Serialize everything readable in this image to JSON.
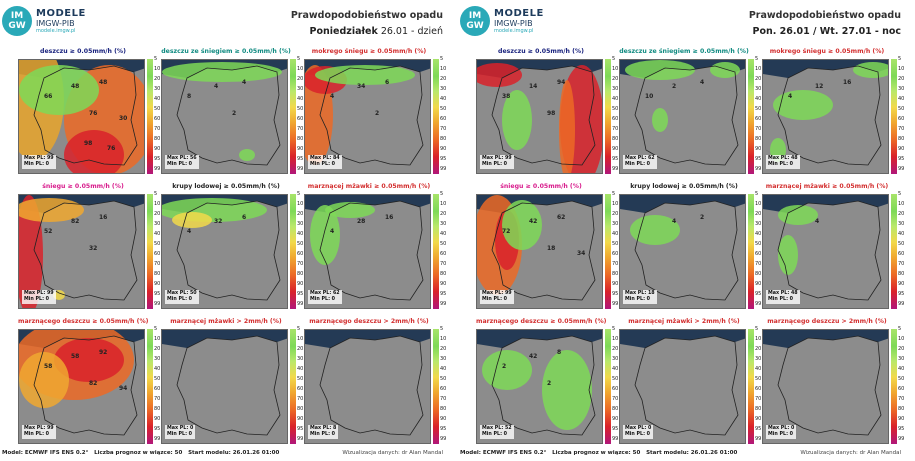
{
  "colors": {
    "navy": "#1a237e",
    "teal": "#0f8a80",
    "pink": "#d81b8c",
    "red": "#d32f2f",
    "black": "#222222"
  },
  "logo": {
    "line1": "MODELE",
    "line2": "IMGW-PIB",
    "url": "modele.imgw.pl",
    "badge_line1": "IM",
    "badge_line2": "GW"
  },
  "ticks": [
    "5",
    "10",
    "20",
    "30",
    "40",
    "50",
    "60",
    "70",
    "80",
    "90",
    "95",
    "99"
  ],
  "stat_labels": {
    "max": "Max PL:",
    "min": "Min PL:"
  },
  "left": {
    "title_line1": "Prawdopodobieństwo opadu",
    "title_day": "Poniedziałek",
    "title_date": "26.01 - dzień",
    "footer_model": "Model: ECMWF IFS ENS 0.2°",
    "footer_count": "Liczba prognoz w wiązce: 50",
    "footer_start": "Start modelu: 26.01.26 01:00",
    "footer_credit": "Wizualizacja danych: dr Alan Mandal",
    "panels": [
      {
        "title": "deszczu ≥ 0.05mm/h (%)",
        "color": "navy",
        "max": "99",
        "min": "0",
        "labels": [
          "48",
          "48",
          "66",
          "76",
          "30",
          "98",
          "76"
        ]
      },
      {
        "title": "deszczu ze śniegiem ≥ 0.05mm/h (%)",
        "color": "teal",
        "max": "56",
        "min": "0",
        "labels": [
          "4",
          "4",
          "8",
          "2"
        ]
      },
      {
        "title": "mokrego śniegu ≥ 0.05mm/h (%)",
        "color": "red",
        "max": "84",
        "min": "0",
        "labels": [
          "34",
          "6",
          "4",
          "2"
        ]
      },
      {
        "title": "śniegu ≥ 0.05mm/h (%)",
        "color": "pink",
        "max": "99",
        "min": "0",
        "labels": [
          "82",
          "16",
          "52",
          "32"
        ]
      },
      {
        "title": "krupy lodowej ≥ 0.05mm/h (%)",
        "color": "black",
        "max": "50",
        "min": "0",
        "labels": [
          "32",
          "6",
          "4"
        ]
      },
      {
        "title": "marznącej mżawki ≥ 0.05mm/h (%)",
        "color": "red",
        "max": "62",
        "min": "0",
        "labels": [
          "28",
          "16",
          "4"
        ]
      },
      {
        "title": "marznącego deszczu ≥ 0.05mm/h (%)",
        "color": "red",
        "max": "99",
        "min": "0",
        "labels": [
          "58",
          "92",
          "58",
          "82",
          "94"
        ]
      },
      {
        "title": "marznącej mżawki > 2mm/h (%)",
        "color": "red",
        "max": "0",
        "min": "0",
        "labels": []
      },
      {
        "title": "marznącego deszczu > 2mm/h (%)",
        "color": "red",
        "max": "8",
        "min": "0",
        "labels": []
      }
    ]
  },
  "right": {
    "title_line1": "Prawdopodobieństwo opadu",
    "title_day": "Pon. 26.01 / Wt. 27.01",
    "title_date": "- noc",
    "footer_model": "Model: ECMWF IFS ENS 0.2°",
    "footer_count": "Liczba prognoz w wiązce: 50",
    "footer_start": "Start modelu: 26.01.26 01:00",
    "footer_credit": "Wizualizacja danych: dr Alan Mandal",
    "panels": [
      {
        "title": "deszczu ≥ 0.05mm/h (%)",
        "color": "navy",
        "max": "99",
        "min": "0",
        "labels": [
          "14",
          "94",
          "38",
          "98"
        ]
      },
      {
        "title": "deszczu ze śniegiem ≥ 0.05mm/h (%)",
        "color": "teal",
        "max": "62",
        "min": "0",
        "labels": [
          "2",
          "4",
          "10"
        ]
      },
      {
        "title": "mokrego śniegu ≥ 0.05mm/h (%)",
        "color": "red",
        "max": "48",
        "min": "0",
        "labels": [
          "12",
          "16",
          "4"
        ]
      },
      {
        "title": "śniegu ≥ 0.05mm/h (%)",
        "color": "pink",
        "max": "99",
        "min": "0",
        "labels": [
          "42",
          "62",
          "72",
          "18",
          "34"
        ]
      },
      {
        "title": "krupy lodowej ≥ 0.05mm/h (%)",
        "color": "black",
        "max": "18",
        "min": "0",
        "labels": [
          "4",
          "2"
        ]
      },
      {
        "title": "marznącej mżawki ≥ 0.05mm/h (%)",
        "color": "red",
        "max": "48",
        "min": "0",
        "labels": [
          "4"
        ]
      },
      {
        "title": "marznącego deszczu ≥ 0.05mm/h (%)",
        "color": "red",
        "max": "52",
        "min": "0",
        "labels": [
          "42",
          "8",
          "2",
          "2"
        ]
      },
      {
        "title": "marznącej mżawki > 2mm/h (%)",
        "color": "red",
        "max": "0",
        "min": "0",
        "labels": []
      },
      {
        "title": "marznącego deszczu > 2mm/h (%)",
        "color": "red",
        "max": "0",
        "min": "0",
        "labels": []
      }
    ]
  }
}
